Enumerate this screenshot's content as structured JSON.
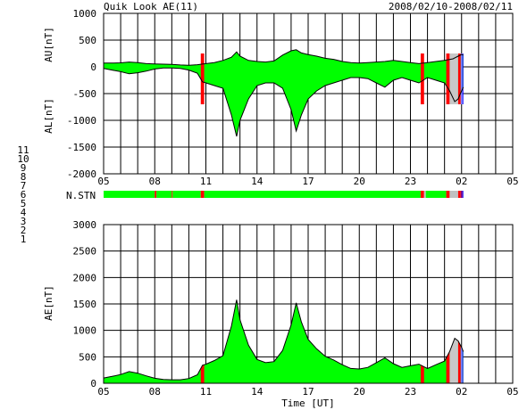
{
  "chart_data": [
    {
      "type": "area",
      "panel": "AU/AL",
      "title_left": "Quik Look AE(11)",
      "title_right": "2008/02/10-2008/02/11",
      "ylabel_upper": "AU[nT]",
      "ylabel_lower": "AL[nT]",
      "ylim": [
        -2000,
        1000
      ],
      "yticks": [
        "1000",
        "500",
        "0",
        "-500",
        "-1000",
        "-1500",
        "-2000"
      ],
      "xticks": [
        "05",
        "08",
        "11",
        "14",
        "17",
        "20",
        "23",
        "02",
        "05"
      ],
      "x_range_hours": [
        5,
        29
      ],
      "data_end_hour": 26.1,
      "au": [
        [
          5.0,
          70
        ],
        [
          5.5,
          70
        ],
        [
          6.0,
          75
        ],
        [
          6.5,
          90
        ],
        [
          7.0,
          80
        ],
        [
          7.5,
          60
        ],
        [
          8.0,
          55
        ],
        [
          8.5,
          50
        ],
        [
          9.0,
          45
        ],
        [
          9.5,
          35
        ],
        [
          10.0,
          30
        ],
        [
          10.5,
          40
        ],
        [
          11.0,
          60
        ],
        [
          11.5,
          80
        ],
        [
          12.0,
          120
        ],
        [
          12.5,
          180
        ],
        [
          12.8,
          280
        ],
        [
          13.0,
          200
        ],
        [
          13.5,
          120
        ],
        [
          14.0,
          100
        ],
        [
          14.5,
          90
        ],
        [
          15.0,
          110
        ],
        [
          15.5,
          220
        ],
        [
          16.0,
          300
        ],
        [
          16.3,
          320
        ],
        [
          16.6,
          260
        ],
        [
          17.0,
          230
        ],
        [
          17.5,
          200
        ],
        [
          18.0,
          160
        ],
        [
          18.5,
          140
        ],
        [
          19.0,
          100
        ],
        [
          19.5,
          80
        ],
        [
          20.0,
          70
        ],
        [
          20.5,
          80
        ],
        [
          21.0,
          90
        ],
        [
          21.5,
          100
        ],
        [
          22.0,
          120
        ],
        [
          22.5,
          100
        ],
        [
          23.0,
          80
        ],
        [
          23.5,
          60
        ],
        [
          24.0,
          80
        ],
        [
          24.5,
          100
        ],
        [
          25.0,
          120
        ],
        [
          25.5,
          150
        ],
        [
          25.8,
          200
        ],
        [
          26.0,
          230
        ],
        [
          26.1,
          220
        ]
      ],
      "al": [
        [
          5.0,
          -30
        ],
        [
          5.5,
          -60
        ],
        [
          6.0,
          -90
        ],
        [
          6.5,
          -130
        ],
        [
          7.0,
          -110
        ],
        [
          7.5,
          -80
        ],
        [
          8.0,
          -40
        ],
        [
          8.5,
          -20
        ],
        [
          9.0,
          -20
        ],
        [
          9.5,
          -30
        ],
        [
          10.0,
          -60
        ],
        [
          10.5,
          -120
        ],
        [
          10.8,
          -280
        ],
        [
          11.0,
          -300
        ],
        [
          11.5,
          -350
        ],
        [
          12.0,
          -400
        ],
        [
          12.5,
          -900
        ],
        [
          12.8,
          -1300
        ],
        [
          13.0,
          -1000
        ],
        [
          13.5,
          -600
        ],
        [
          14.0,
          -350
        ],
        [
          14.5,
          -300
        ],
        [
          15.0,
          -300
        ],
        [
          15.5,
          -400
        ],
        [
          16.0,
          -800
        ],
        [
          16.3,
          -1200
        ],
        [
          16.6,
          -900
        ],
        [
          17.0,
          -600
        ],
        [
          17.5,
          -450
        ],
        [
          18.0,
          -350
        ],
        [
          18.5,
          -300
        ],
        [
          19.0,
          -250
        ],
        [
          19.5,
          -200
        ],
        [
          20.0,
          -200
        ],
        [
          20.5,
          -220
        ],
        [
          21.0,
          -300
        ],
        [
          21.5,
          -380
        ],
        [
          22.0,
          -250
        ],
        [
          22.5,
          -200
        ],
        [
          23.0,
          -250
        ],
        [
          23.5,
          -300
        ],
        [
          24.0,
          -200
        ],
        [
          24.5,
          -250
        ],
        [
          25.0,
          -300
        ],
        [
          25.3,
          -450
        ],
        [
          25.6,
          -650
        ],
        [
          25.8,
          -600
        ],
        [
          26.0,
          -450
        ],
        [
          26.1,
          -380
        ]
      ],
      "markers": [
        {
          "start": 10.7,
          "end": 10.9,
          "color": "#ff0000"
        },
        {
          "start": 23.6,
          "end": 23.8,
          "color": "#ff0000"
        },
        {
          "start": 25.1,
          "end": 25.3,
          "color": "#ff0000"
        },
        {
          "start": 25.3,
          "end": 25.8,
          "color": "#c8c8c8"
        },
        {
          "start": 25.8,
          "end": 25.95,
          "color": "#ff0000"
        },
        {
          "start": 25.95,
          "end": 26.05,
          "color": "#8080ff"
        },
        {
          "start": 26.05,
          "end": 26.1,
          "color": "#0000ff"
        }
      ]
    },
    {
      "type": "bar",
      "panel": "N.STN",
      "label": "N.STN",
      "legend": [
        {
          "label": "11",
          "color": "#00e0e0"
        },
        {
          "label": "10",
          "color": "#ff00ff"
        },
        {
          "label": "9",
          "color": "#0000c0"
        },
        {
          "label": "8",
          "color": "#ffff80"
        },
        {
          "label": "7",
          "color": "#00ff00"
        },
        {
          "label": "6",
          "color": "#ff0000"
        },
        {
          "label": "5",
          "color": "#e0e0e0"
        },
        {
          "label": "4",
          "color": "#c0c0c0"
        },
        {
          "label": "3",
          "color": "#00a0a0"
        },
        {
          "label": "2",
          "color": "#800080"
        },
        {
          "label": "1",
          "color": "#0000ff"
        }
      ],
      "segments": [
        {
          "start": 5.0,
          "end": 8.0,
          "color": "#00ff00"
        },
        {
          "start": 8.0,
          "end": 8.1,
          "color": "#ff0000"
        },
        {
          "start": 8.1,
          "end": 9.0,
          "color": "#00ff00"
        },
        {
          "start": 9.0,
          "end": 9.05,
          "color": "#ff0000"
        },
        {
          "start": 9.05,
          "end": 10.7,
          "color": "#00ff00"
        },
        {
          "start": 10.7,
          "end": 10.9,
          "color": "#ff0000"
        },
        {
          "start": 10.9,
          "end": 23.6,
          "color": "#00ff00"
        },
        {
          "start": 23.6,
          "end": 23.8,
          "color": "#ff0000"
        },
        {
          "start": 23.8,
          "end": 23.9,
          "color": "#c0c0c0"
        },
        {
          "start": 23.9,
          "end": 25.1,
          "color": "#00ff00"
        },
        {
          "start": 25.1,
          "end": 25.3,
          "color": "#ff0000"
        },
        {
          "start": 25.3,
          "end": 25.8,
          "color": "#c0c0c0"
        },
        {
          "start": 25.8,
          "end": 25.95,
          "color": "#ff0000"
        },
        {
          "start": 25.95,
          "end": 26.05,
          "color": "#800080"
        },
        {
          "start": 26.05,
          "end": 26.1,
          "color": "#0000ff"
        }
      ]
    },
    {
      "type": "area",
      "panel": "AE",
      "ylabel": "AE[nT]",
      "xlabel": "Time [UT]",
      "ylim": [
        0,
        3000
      ],
      "yticks": [
        "3000",
        "2500",
        "2000",
        "1500",
        "1000",
        "500",
        "0"
      ],
      "xticks": [
        "05",
        "08",
        "11",
        "14",
        "17",
        "20",
        "23",
        "02",
        "05"
      ],
      "x_range_hours": [
        5,
        29
      ],
      "ae": [
        [
          5.0,
          100
        ],
        [
          5.5,
          130
        ],
        [
          6.0,
          165
        ],
        [
          6.5,
          220
        ],
        [
          7.0,
          190
        ],
        [
          7.5,
          140
        ],
        [
          8.0,
          95
        ],
        [
          8.5,
          70
        ],
        [
          9.0,
          65
        ],
        [
          9.5,
          65
        ],
        [
          10.0,
          90
        ],
        [
          10.5,
          160
        ],
        [
          10.8,
          340
        ],
        [
          11.0,
          360
        ],
        [
          11.5,
          430
        ],
        [
          12.0,
          520
        ],
        [
          12.5,
          1080
        ],
        [
          12.8,
          1580
        ],
        [
          13.0,
          1200
        ],
        [
          13.5,
          720
        ],
        [
          14.0,
          450
        ],
        [
          14.5,
          390
        ],
        [
          15.0,
          410
        ],
        [
          15.5,
          620
        ],
        [
          16.0,
          1100
        ],
        [
          16.3,
          1520
        ],
        [
          16.6,
          1160
        ],
        [
          17.0,
          830
        ],
        [
          17.5,
          650
        ],
        [
          18.0,
          510
        ],
        [
          18.5,
          440
        ],
        [
          19.0,
          350
        ],
        [
          19.5,
          280
        ],
        [
          20.0,
          270
        ],
        [
          20.5,
          300
        ],
        [
          21.0,
          390
        ],
        [
          21.5,
          480
        ],
        [
          22.0,
          370
        ],
        [
          22.5,
          300
        ],
        [
          23.0,
          330
        ],
        [
          23.5,
          360
        ],
        [
          24.0,
          280
        ],
        [
          24.5,
          350
        ],
        [
          25.0,
          420
        ],
        [
          25.3,
          600
        ],
        [
          25.6,
          850
        ],
        [
          25.8,
          800
        ],
        [
          26.0,
          680
        ],
        [
          26.1,
          600
        ]
      ],
      "markers": [
        {
          "start": 10.7,
          "end": 10.9,
          "color": "#ff0000"
        },
        {
          "start": 23.6,
          "end": 23.8,
          "color": "#ff0000"
        },
        {
          "start": 25.1,
          "end": 25.3,
          "color": "#ff0000"
        },
        {
          "start": 25.3,
          "end": 25.8,
          "color": "#c8c8c8"
        },
        {
          "start": 25.8,
          "end": 25.95,
          "color": "#ff0000"
        },
        {
          "start": 25.95,
          "end": 26.05,
          "color": "#8080ff"
        },
        {
          "start": 26.05,
          "end": 26.1,
          "color": "#0000ff"
        }
      ]
    }
  ]
}
